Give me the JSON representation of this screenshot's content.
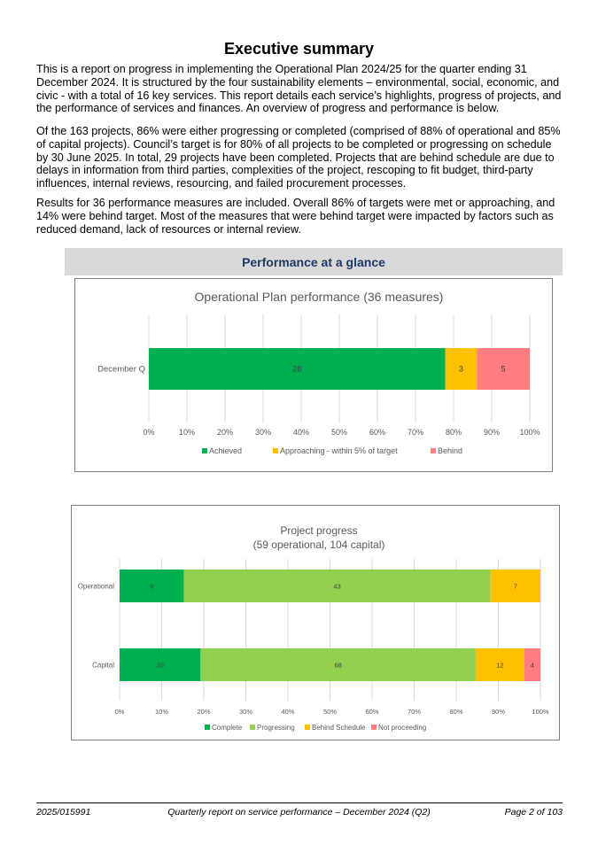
{
  "title": "Executive summary",
  "paragraphs": [
    "This is a report on progress in implementing the Operational Plan 2024/25 for the quarter ending 31 December 2024. It is structured by the four sustainability elements – environmental, social, economic, and civic - with a total of 16 key services. This report details each service’s highlights, progress of projects, and the performance of services and finances. An overview of progress and performance is below.",
    "Of the 163 projects, 86% were either progressing or completed (comprised of 88% of operational and 85% of capital projects). Council’s target is for 80% of all projects to be completed or progressing on schedule by 30 June 2025. In total, 29 projects have been completed. Projects that are behind schedule are due to delays in information from third parties, complexities of the project, rescoping to fit budget, third-party influences, internal reviews, resourcing, and failed procurement processes.",
    "Results for 36 performance measures are included. Overall 86% of targets were met or approaching, and 14% were behind target. Most of the measures that were behind target were impacted by factors such as reduced demand, lack of resources or internal review."
  ],
  "banner": "Performance at a glance",
  "chart_data": [
    {
      "type": "bar",
      "orientation": "horizontal",
      "stacked": "percent",
      "title": "Operational Plan performance (36 measures)",
      "categories": [
        "December Q"
      ],
      "series": [
        {
          "name": "Achieved",
          "values": [
            28
          ],
          "color": "#00b050"
        },
        {
          "name": "Approaching - within 5% of target",
          "values": [
            3
          ],
          "color": "#ffc000"
        },
        {
          "name": "Behind",
          "values": [
            5
          ],
          "color": "#ff7c80"
        }
      ],
      "xlim": [
        0,
        100
      ],
      "xticks": [
        "0%",
        "10%",
        "20%",
        "30%",
        "40%",
        "50%",
        "60%",
        "70%",
        "80%",
        "90%",
        "100%"
      ],
      "grid": true,
      "legend": "bottom"
    },
    {
      "type": "bar",
      "orientation": "horizontal",
      "stacked": "percent",
      "title": "Project progress",
      "subtitle": "(59 operational, 104 capital)",
      "categories": [
        "Operational",
        "Capital"
      ],
      "series": [
        {
          "name": "Complete",
          "values": [
            9,
            20
          ],
          "color": "#00b050"
        },
        {
          "name": "Progressing",
          "values": [
            43,
            68
          ],
          "color": "#92d050"
        },
        {
          "name": "Behind Schedule",
          "values": [
            7,
            12
          ],
          "color": "#ffc000"
        },
        {
          "name": "Not proceeding",
          "values": [
            0,
            4
          ],
          "color": "#ff7c80"
        }
      ],
      "xlim": [
        0,
        100
      ],
      "xticks": [
        "0%",
        "10%",
        "20%",
        "30%",
        "40%",
        "50%",
        "60%",
        "70%",
        "80%",
        "90%",
        "100%"
      ],
      "grid": true,
      "legend": "bottom"
    }
  ],
  "footer": {
    "left": "2025/015991",
    "center": "Quarterly report on service performance – December 2024 (Q2)",
    "right": "Page 2 of 103"
  }
}
